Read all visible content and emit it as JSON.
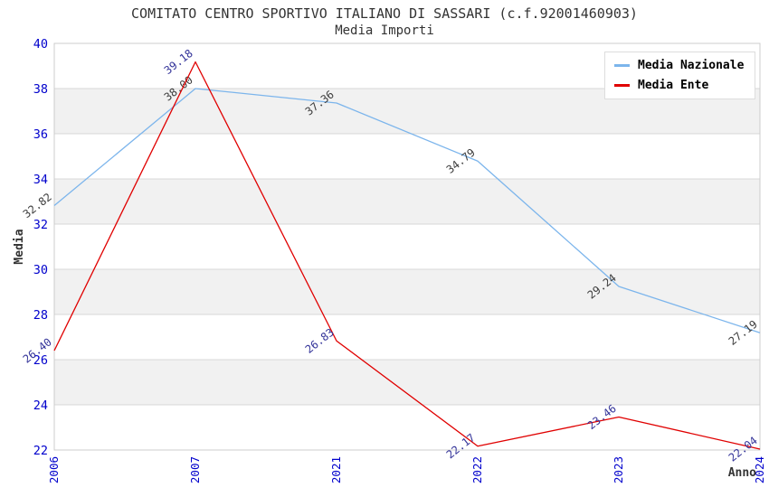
{
  "header": {
    "title": "COMITATO CENTRO SPORTIVO ITALIANO DI SASSARI (c.f.92001460903)",
    "subtitle": "Media Importi"
  },
  "chart_data": {
    "type": "line",
    "categories": [
      "2006",
      "2007",
      "2021",
      "2022",
      "2023",
      "2024"
    ],
    "series": [
      {
        "name": "Media Nazionale",
        "color": "#7cb5ec",
        "label_color": "#3c3c3c",
        "values": [
          32.82,
          38.0,
          37.36,
          34.79,
          29.24,
          27.19
        ]
      },
      {
        "name": "Media Ente",
        "color": "#e00000",
        "label_color": "#333399",
        "values": [
          26.4,
          39.18,
          26.83,
          22.17,
          23.46,
          22.04
        ]
      }
    ],
    "xlabel": "Anno",
    "ylabel": "Media",
    "ylim": [
      22,
      40
    ],
    "ytick_step": 2,
    "grid": true,
    "legend_position": "top-right",
    "band_colors": [
      "#ffffff",
      "#f1f1f1"
    ],
    "border_color": "#cccccc",
    "gridline_color": "#d8d8d8",
    "tick_label_color": "#0000cc",
    "data_label_rotation_deg": -38
  }
}
